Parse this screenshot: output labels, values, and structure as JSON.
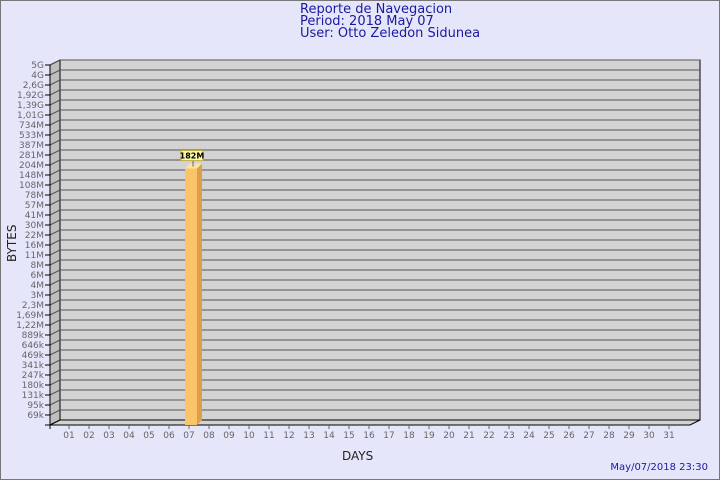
{
  "header": {
    "title": "Reporte de Navegacion",
    "period": "Period: 2018 May 07",
    "user": "User: Otto Zeledon Sidunea"
  },
  "footer": {
    "timestamp": "May/07/2018 23:30"
  },
  "colors": {
    "background": "#e6e6fa",
    "plot": "#d3d3d3",
    "bar_front": "#fcc468",
    "bar_side": "#dca048",
    "bar_top": "#fde3a0",
    "text": "#1a1aa0",
    "label_box": "#fcf8a8"
  },
  "chart_data": {
    "type": "bar",
    "title": "Reporte de Navegacion",
    "xlabel": "DAYS",
    "ylabel": "BYTES",
    "y_scale": "log",
    "grid": true,
    "three_d": true,
    "y_tick_labels": [
      "5G",
      "4G",
      "2,6G",
      "1,92G",
      "1,39G",
      "1,01G",
      "734M",
      "533M",
      "387M",
      "281M",
      "204M",
      "148M",
      "108M",
      "78M",
      "57M",
      "41M",
      "30M",
      "22M",
      "16M",
      "11M",
      "8M",
      "6M",
      "4M",
      "3M",
      "2,3M",
      "1,69M",
      "1,22M",
      "889k",
      "646k",
      "469k",
      "341k",
      "247k",
      "180k",
      "131k",
      "95k",
      "69k"
    ],
    "categories": [
      "01",
      "02",
      "03",
      "04",
      "05",
      "06",
      "07",
      "08",
      "09",
      "10",
      "11",
      "12",
      "13",
      "14",
      "15",
      "16",
      "17",
      "18",
      "19",
      "20",
      "21",
      "22",
      "23",
      "24",
      "25",
      "26",
      "27",
      "28",
      "29",
      "30",
      "31"
    ],
    "values": [
      null,
      null,
      null,
      null,
      null,
      null,
      182000000,
      null,
      null,
      null,
      null,
      null,
      null,
      null,
      null,
      null,
      null,
      null,
      null,
      null,
      null,
      null,
      null,
      null,
      null,
      null,
      null,
      null,
      null,
      null,
      null
    ],
    "data_labels": {
      "07": "182M"
    }
  }
}
